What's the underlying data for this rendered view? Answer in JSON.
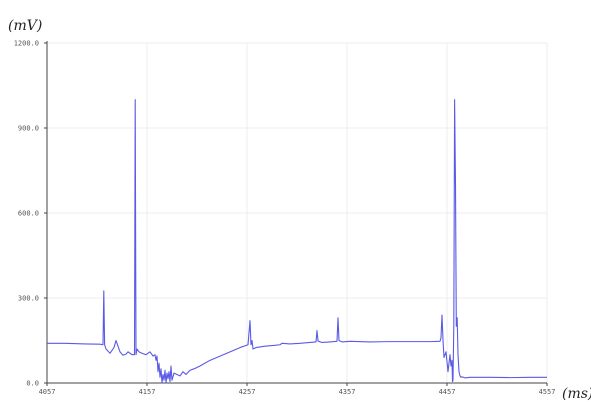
{
  "chart_data": {
    "type": "line",
    "title": "",
    "ylabel": "(mV)",
    "xlabel": "(ms)",
    "ylim": [
      0,
      1200
    ],
    "xlim": [
      4057,
      4557
    ],
    "y_ticks": [
      0,
      300,
      600,
      900,
      1200
    ],
    "y_tick_labels": [
      "0.0",
      "300.0",
      "600.0",
      "900.0",
      "1200.0"
    ],
    "x_ticks": [
      4057,
      4157,
      4257,
      4357,
      4457,
      4557
    ],
    "x_tick_labels": [
      "4057",
      "4157",
      "4257",
      "4357",
      "4457",
      "4557"
    ],
    "grid": true,
    "legend": "none",
    "series_color": "#5a5ae6",
    "axis_color": "#444444",
    "grid_color": "#ececec",
    "series": [
      {
        "x": [
          4057,
          4075,
          4095,
          4110,
          4113,
          4113.8,
          4114.6,
          4116,
          4120,
          4122,
          4124,
          4126,
          4128,
          4130,
          4133,
          4136,
          4138,
          4140,
          4142,
          4144.5,
          4145.2,
          4146,
          4147,
          4149,
          4152,
          4156,
          4160,
          4163,
          4165,
          4166,
          4167,
          4168,
          4169,
          4170,
          4171,
          4172,
          4173,
          4174,
          4175,
          4176,
          4177,
          4178,
          4179,
          4180,
          4181,
          4182,
          4184,
          4187,
          4190,
          4193,
          4196,
          4200,
          4204,
          4210,
          4220,
          4230,
          4240,
          4250,
          4258,
          4260,
          4261,
          4262,
          4263,
          4266,
          4275,
          4285,
          4290,
          4292,
          4300,
          4310,
          4320,
          4326,
          4327,
          4328,
          4332,
          4340,
          4347,
          4348,
          4349,
          4352,
          4360,
          4380,
          4400,
          4420,
          4440,
          4450,
          4451,
          4452,
          4453,
          4454,
          4456,
          4458,
          4460,
          4461,
          4462,
          4462.5,
          4463,
          4463.8,
          4464.6,
          4465.5,
          4466.3,
          4467.2,
          4468,
          4469,
          4470,
          4471,
          4472,
          4475,
          4480,
          4500,
          4520,
          4540,
          4557
        ],
        "y": [
          140,
          140,
          138,
          137,
          135,
          325,
          135,
          120,
          105,
          115,
          125,
          150,
          130,
          110,
          98,
          102,
          110,
          105,
          100,
          100,
          1000,
          100,
          120,
          110,
          105,
          100,
          110,
          95,
          100,
          80,
          95,
          40,
          70,
          20,
          50,
          0,
          30,
          10,
          45,
          0,
          35,
          15,
          40,
          5,
          60,
          10,
          35,
          30,
          25,
          40,
          30,
          45,
          50,
          60,
          80,
          95,
          110,
          125,
          135,
          220,
          135,
          150,
          120,
          125,
          130,
          133,
          135,
          140,
          138,
          140,
          143,
          145,
          185,
          148,
          143,
          145,
          147,
          230,
          150,
          145,
          147,
          145,
          146,
          146,
          146,
          147,
          160,
          240,
          150,
          90,
          110,
          40,
          100,
          60,
          80,
          5,
          10,
          200,
          1000,
          700,
          200,
          230,
          100,
          40,
          25,
          20,
          22,
          18,
          20,
          20,
          19,
          20,
          20
        ]
      }
    ]
  }
}
